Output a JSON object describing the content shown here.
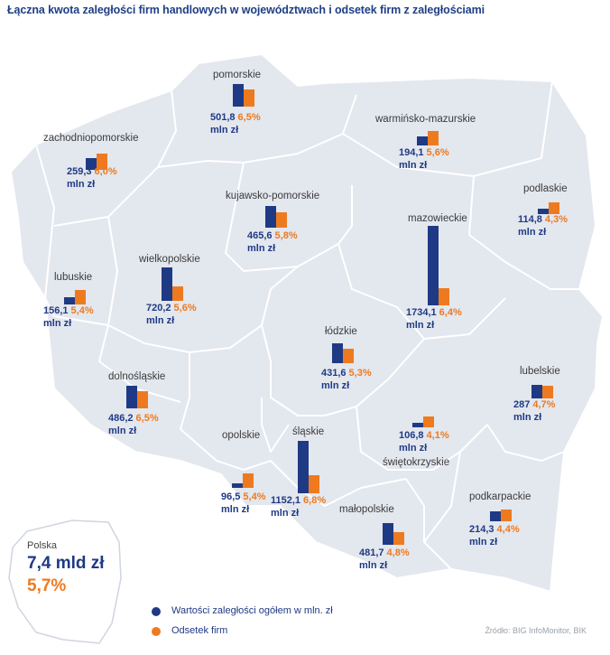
{
  "title": "Łączna kwota zaległości firm handlowych w województwach i odsetek firm z zaległościami",
  "unit_label": "mln zł",
  "colors": {
    "value": "#1f3a84",
    "percent": "#ee7a1f",
    "map_fill": "#e3e7ee",
    "border": "#ffffff"
  },
  "regions": [
    {
      "name": "pomorskie",
      "value": "501,8",
      "percent": "6,5%",
      "value_num": 501.8,
      "percent_num": 6.5
    },
    {
      "name": "zachodniopomorskie",
      "value": "259,3",
      "percent": "6,0%",
      "value_num": 259.3,
      "percent_num": 6.0
    },
    {
      "name": "warmińsko-mazurskie",
      "value": "194,1",
      "percent": "5,6%",
      "value_num": 194.1,
      "percent_num": 5.6
    },
    {
      "name": "kujawsko-pomorskie",
      "value": "465,6",
      "percent": "5,8%",
      "value_num": 465.6,
      "percent_num": 5.8
    },
    {
      "name": "podlaskie",
      "value": "114,8",
      "percent": "4,3%",
      "value_num": 114.8,
      "percent_num": 4.3
    },
    {
      "name": "mazowieckie",
      "value": "1734,1",
      "percent": "6,4%",
      "value_num": 1734.1,
      "percent_num": 6.4
    },
    {
      "name": "lubuskie",
      "value": "156,1",
      "percent": "5,4%",
      "value_num": 156.1,
      "percent_num": 5.4
    },
    {
      "name": "wielkopolskie",
      "value": "720,2",
      "percent": "5,6%",
      "value_num": 720.2,
      "percent_num": 5.6
    },
    {
      "name": "łódzkie",
      "value": "431,6",
      "percent": "5,3%",
      "value_num": 431.6,
      "percent_num": 5.3
    },
    {
      "name": "dolnośląskie",
      "value": "486,2",
      "percent": "6,5%",
      "value_num": 486.2,
      "percent_num": 6.5
    },
    {
      "name": "lubelskie",
      "value": "287",
      "percent": "4,7%",
      "value_num": 287,
      "percent_num": 4.7
    },
    {
      "name": "opolskie",
      "value": "96,5",
      "percent": "5,4%",
      "value_num": 96.5,
      "percent_num": 5.4
    },
    {
      "name": "śląskie",
      "value": "1152,1",
      "percent": "6,8%",
      "value_num": 1152.1,
      "percent_num": 6.8
    },
    {
      "name": "świętokrzyskie",
      "value": "106,8",
      "percent": "4,1%",
      "value_num": 106.8,
      "percent_num": 4.1
    },
    {
      "name": "podkarpackie",
      "value": "214,3",
      "percent": "4,4%",
      "value_num": 214.3,
      "percent_num": 4.4
    },
    {
      "name": "małopolskie",
      "value": "481,7",
      "percent": "4,8%",
      "value_num": 481.7,
      "percent_num": 4.8
    }
  ],
  "summary": {
    "label": "Polska",
    "value": "7,4 mld zł",
    "percent": "5,7%"
  },
  "legend": [
    {
      "label": "Wartości zaległości ogółem w mln. zł"
    },
    {
      "label": "Odsetek firm"
    }
  ],
  "source": "Źródło: BIG InfoMonitor, BIK"
}
